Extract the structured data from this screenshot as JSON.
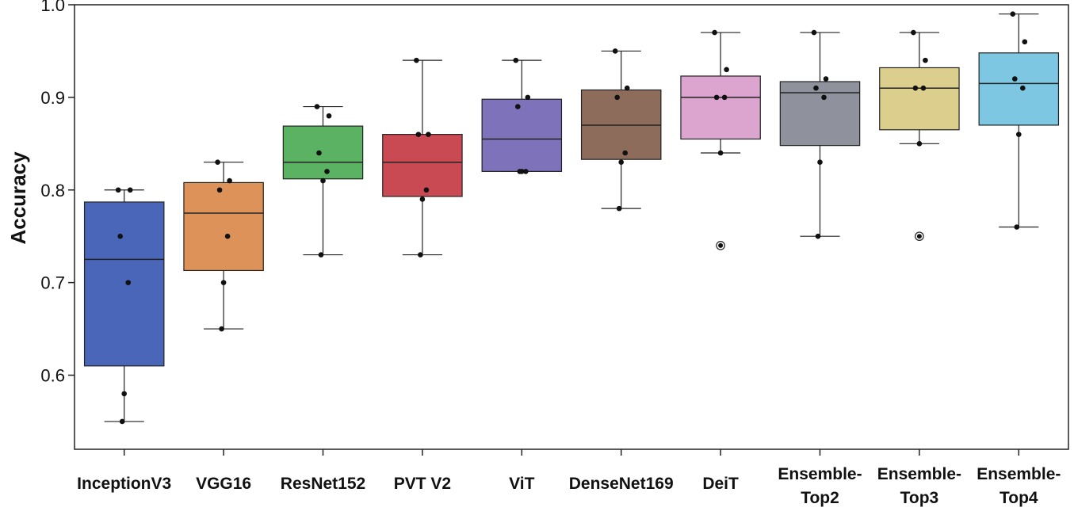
{
  "chart_data": {
    "type": "box",
    "ylabel": "Accuracy",
    "ylim": [
      0.52,
      1.0
    ],
    "yticks": [
      "0.6",
      "0.7",
      "0.8",
      "0.9",
      "1.0"
    ],
    "grid": false,
    "categories": [
      {
        "label": [
          "InceptionV3"
        ],
        "color": "#4a66b8",
        "q1": 0.61,
        "median": 0.725,
        "q3": 0.787,
        "whisker_low": 0.55,
        "whisker_high": 0.8,
        "points": [
          0.8,
          0.8,
          0.75,
          0.7,
          0.58,
          0.55
        ],
        "outliers": []
      },
      {
        "label": [
          "VGG16"
        ],
        "color": "#dd925a",
        "q1": 0.713,
        "median": 0.775,
        "q3": 0.808,
        "whisker_low": 0.65,
        "whisker_high": 0.83,
        "points": [
          0.83,
          0.81,
          0.8,
          0.75,
          0.7,
          0.65
        ],
        "outliers": []
      },
      {
        "label": [
          "ResNet152"
        ],
        "color": "#5cb263",
        "q1": 0.812,
        "median": 0.83,
        "q3": 0.869,
        "whisker_low": 0.73,
        "whisker_high": 0.89,
        "points": [
          0.89,
          0.88,
          0.84,
          0.82,
          0.81,
          0.73
        ],
        "outliers": []
      },
      {
        "label": [
          "PVT V2"
        ],
        "color": "#c94a52",
        "q1": 0.793,
        "median": 0.83,
        "q3": 0.86,
        "whisker_low": 0.73,
        "whisker_high": 0.94,
        "points": [
          0.94,
          0.86,
          0.86,
          0.8,
          0.79,
          0.73
        ],
        "outliers": []
      },
      {
        "label": [
          "ViT"
        ],
        "color": "#7e72ba",
        "q1": 0.82,
        "median": 0.855,
        "q3": 0.898,
        "whisker_low": 0.82,
        "whisker_high": 0.94,
        "points": [
          0.94,
          0.9,
          0.89,
          0.82,
          0.82,
          0.82
        ],
        "outliers": []
      },
      {
        "label": [
          "DenseNet169"
        ],
        "color": "#8e6c5b",
        "q1": 0.833,
        "median": 0.87,
        "q3": 0.908,
        "whisker_low": 0.78,
        "whisker_high": 0.95,
        "points": [
          0.95,
          0.91,
          0.9,
          0.84,
          0.83,
          0.78
        ],
        "outliers": []
      },
      {
        "label": [
          "DeiT"
        ],
        "color": "#dba5cf",
        "q1": 0.855,
        "median": 0.9,
        "q3": 0.923,
        "whisker_low": 0.84,
        "whisker_high": 0.97,
        "points": [
          0.97,
          0.93,
          0.9,
          0.9,
          0.84
        ],
        "outliers": [
          0.74
        ]
      },
      {
        "label": [
          "Ensemble-",
          "Top2"
        ],
        "color": "#8f919d",
        "q1": 0.848,
        "median": 0.905,
        "q3": 0.917,
        "whisker_low": 0.75,
        "whisker_high": 0.97,
        "points": [
          0.97,
          0.92,
          0.91,
          0.9,
          0.83,
          0.75
        ],
        "outliers": []
      },
      {
        "label": [
          "Ensemble-",
          "Top3"
        ],
        "color": "#dccf8e",
        "q1": 0.865,
        "median": 0.91,
        "q3": 0.932,
        "whisker_low": 0.85,
        "whisker_high": 0.97,
        "points": [
          0.97,
          0.94,
          0.91,
          0.91,
          0.85
        ],
        "outliers": [
          0.75
        ]
      },
      {
        "label": [
          "Ensemble-",
          "Top4"
        ],
        "color": "#7dc7e2",
        "q1": 0.87,
        "median": 0.915,
        "q3": 0.948,
        "whisker_low": 0.76,
        "whisker_high": 0.99,
        "points": [
          0.99,
          0.96,
          0.92,
          0.91,
          0.86,
          0.76
        ],
        "outliers": []
      }
    ]
  }
}
